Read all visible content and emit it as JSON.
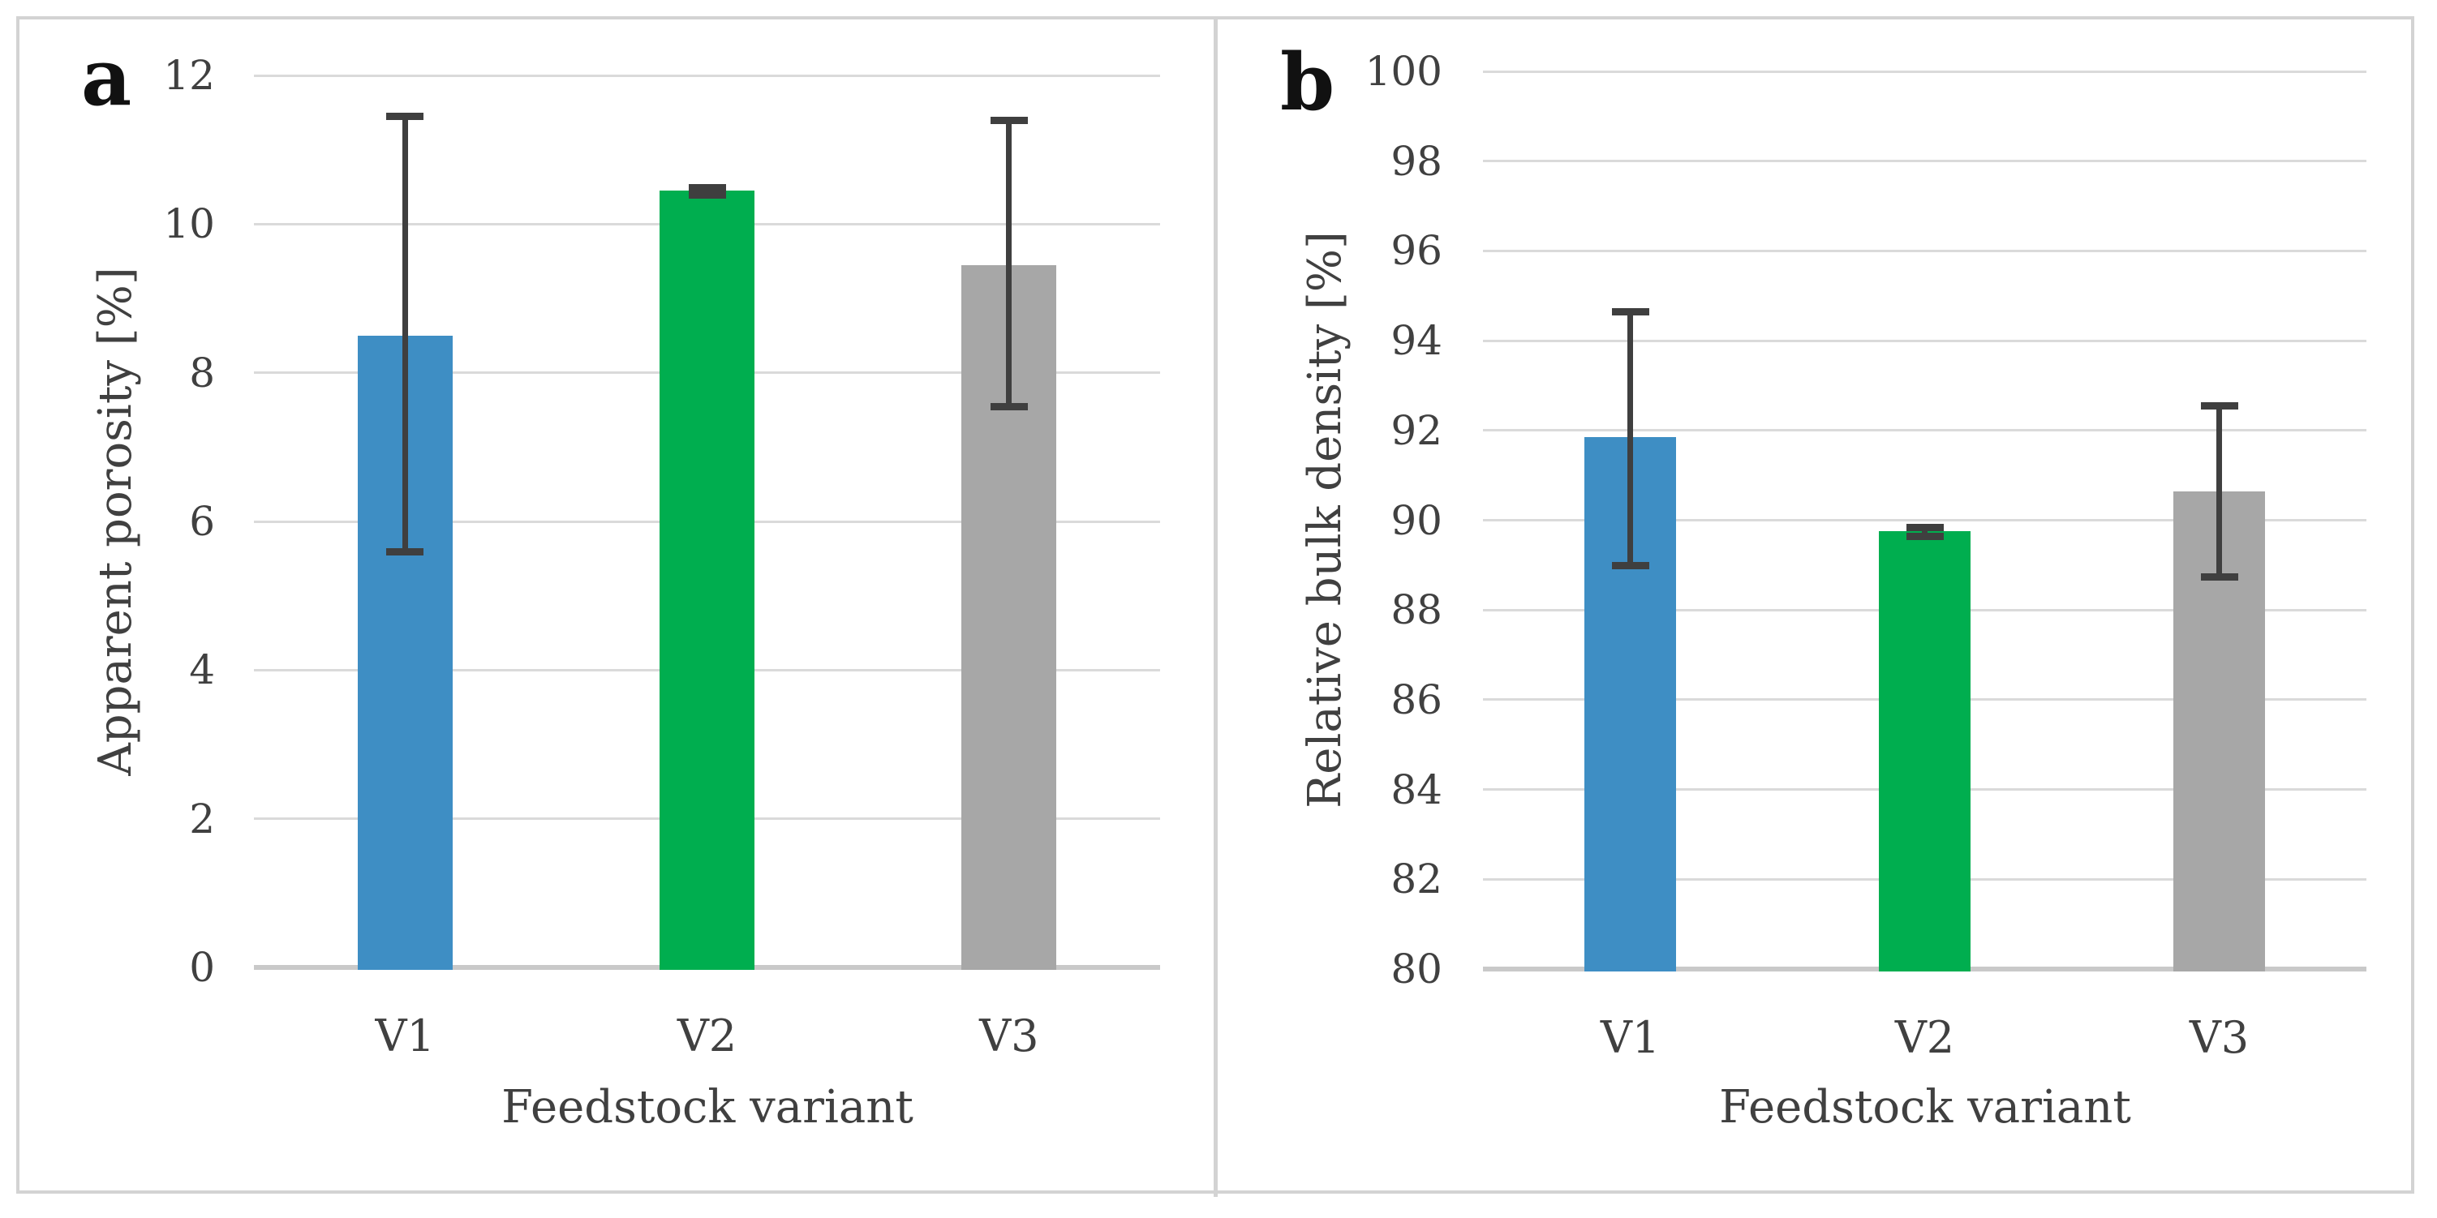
{
  "figure_background": "#ffffff",
  "frame_border_color": "#d3d3d3",
  "panel_labels": [
    "a",
    "b"
  ],
  "chart_data": [
    {
      "panel": "a",
      "type": "bar",
      "categories": [
        "V1",
        "V2",
        "V3"
      ],
      "values": [
        8.5,
        10.45,
        9.45
      ],
      "error_low": [
        5.6,
        10.4,
        7.55
      ],
      "error_high": [
        11.45,
        10.5,
        11.4
      ],
      "xlabel": "Feedstock variant",
      "ylabel": "Apparent porosity [%]",
      "ylim": [
        0,
        12
      ],
      "yticks": [
        0,
        2,
        4,
        6,
        8,
        10,
        12
      ],
      "bar_colors": [
        "#3e8ec4",
        "#00ae4f",
        "#a7a7a7"
      ],
      "error_bar_color": "#3f3f3f",
      "gridline_color": "#dadada",
      "grid": true,
      "legend": "none"
    },
    {
      "panel": "b",
      "type": "bar",
      "categories": [
        "V1",
        "V2",
        "V3"
      ],
      "values": [
        91.85,
        89.75,
        90.65
      ],
      "error_low": [
        89.0,
        89.65,
        88.75
      ],
      "error_high": [
        94.65,
        89.85,
        92.55
      ],
      "xlabel": "Feedstock variant",
      "ylabel": "Relative bulk density [%]",
      "ylim": [
        80,
        100
      ],
      "yticks": [
        80,
        82,
        84,
        86,
        88,
        90,
        92,
        94,
        96,
        98,
        100
      ],
      "bar_colors": [
        "#3e8ec4",
        "#00ae4f",
        "#a7a7a7"
      ],
      "error_bar_color": "#3f3f3f",
      "gridline_color": "#dadada",
      "grid": true,
      "legend": "none"
    }
  ]
}
